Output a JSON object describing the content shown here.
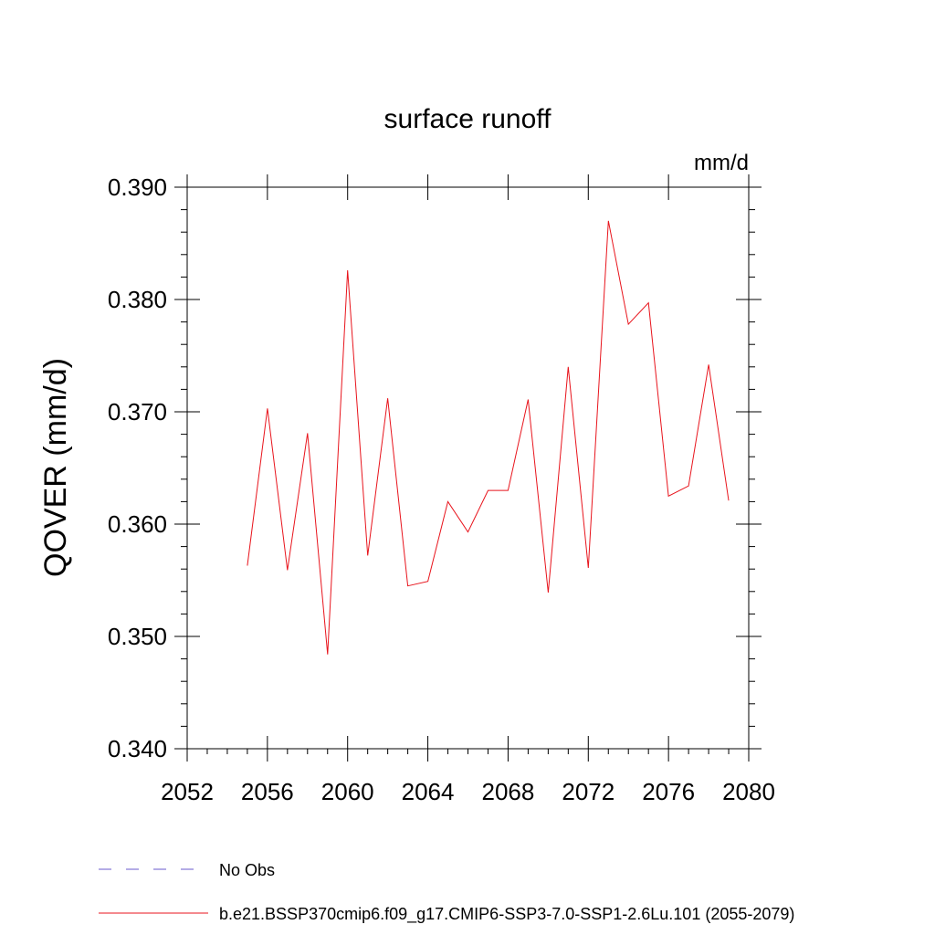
{
  "chart_data": {
    "type": "line",
    "title": "surface runoff",
    "units": "mm/d",
    "ylabel": "QOVER  (mm/d)",
    "xlabel": "",
    "xlim": [
      2052,
      2080
    ],
    "ylim": [
      0.34,
      0.39
    ],
    "x_ticks": [
      2052,
      2056,
      2060,
      2064,
      2068,
      2072,
      2076,
      2080
    ],
    "y_ticks": [
      0.34,
      0.35,
      0.36,
      0.37,
      0.38,
      0.39
    ],
    "y_tick_labels": [
      "0.340",
      "0.350",
      "0.360",
      "0.370",
      "0.380",
      "0.390"
    ],
    "grid": false,
    "legend_placement": "bottom",
    "series": [
      {
        "name": "b.e21.BSSP370cmip6.f09_g17.CMIP6-SSP3-7.0-SSP1-2.6Lu.101 (2055-2079)",
        "color": "#e8141c",
        "style": "solid",
        "x": [
          2055,
          2056,
          2057,
          2058,
          2059,
          2060,
          2061,
          2062,
          2063,
          2064,
          2065,
          2066,
          2067,
          2068,
          2069,
          2070,
          2071,
          2072,
          2073,
          2074,
          2075,
          2076,
          2077,
          2078,
          2079
        ],
        "values": [
          0.3563,
          0.3703,
          0.3559,
          0.3681,
          0.3484,
          0.3826,
          0.3572,
          0.3712,
          0.3545,
          0.3549,
          0.362,
          0.3593,
          0.363,
          0.363,
          0.3711,
          0.3539,
          0.374,
          0.3561,
          0.387,
          0.3778,
          0.3797,
          0.3625,
          0.3634,
          0.3742,
          0.3621
        ]
      }
    ],
    "legend_entries": [
      {
        "label": "No Obs",
        "color": "#6a5acd",
        "style": "dashed"
      },
      {
        "label": "b.e21.BSSP370cmip6.f09_g17.CMIP6-SSP3-7.0-SSP1-2.6Lu.101 (2055-2079)",
        "color": "#e8141c",
        "style": "solid"
      }
    ]
  }
}
